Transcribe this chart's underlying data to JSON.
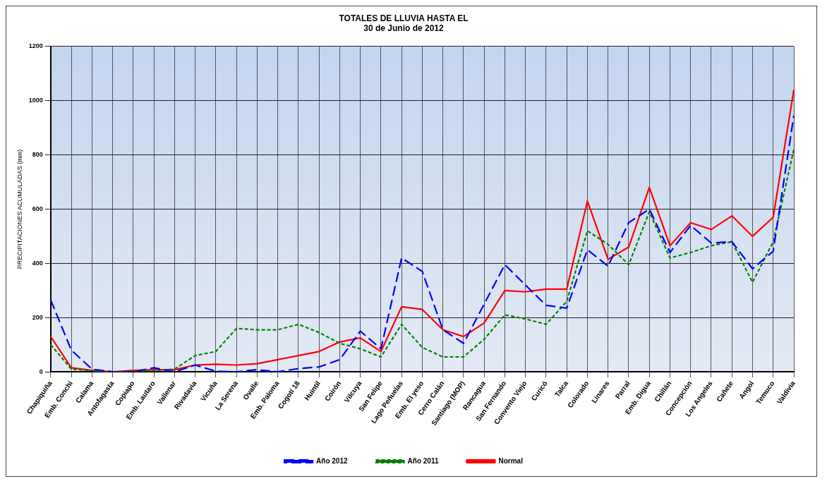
{
  "chart_data": {
    "type": "line",
    "title": "TOTALES DE LLUVIA HASTA EL\n30 de Junio de 2012",
    "ylabel": "PRECIPITACIONES ACUMULADAS (mm)",
    "categories": [
      "Chapiquiña",
      "Emb. Conchi",
      "Calama",
      "Antofagasta",
      "Copiapo",
      "Emb. Lautaro",
      "Vallenar",
      "Rivadavia",
      "Vicuña",
      "La Serena",
      "Ovalle",
      "Emb. Paloma",
      "Cogotí 18",
      "Huintil",
      "Coirón",
      "Vilcuya",
      "San Felipe",
      "Lago Peñuelas",
      "Emb. El yeso",
      "Cerro Calán",
      "Santiago (MOP)",
      "Rancagua",
      "San Fernando",
      "Convento Viejo",
      "Curicó",
      "Talca",
      "Colorado",
      "Linares",
      "Parral",
      "Emb. Digua",
      "Chillán",
      "Concepción",
      "Los Angeles",
      "Cañete",
      "Angol",
      "Temuco",
      "Valdivia"
    ],
    "series": [
      {
        "name": "Año 2012",
        "color": "#0000ff",
        "line_style": "dashed",
        "values": [
          265,
          80,
          10,
          0,
          0,
          15,
          0,
          25,
          2,
          0,
          8,
          0,
          12,
          18,
          45,
          150,
          85,
          420,
          370,
          155,
          105,
          250,
          395,
          320,
          245,
          235,
          450,
          390,
          550,
          600,
          440,
          540,
          475,
          480,
          380,
          445,
          945
        ]
      },
      {
        "name": "Año 2011",
        "color": "#008000",
        "line_style": "dotted",
        "values": [
          100,
          10,
          5,
          0,
          2,
          5,
          10,
          60,
          75,
          160,
          155,
          155,
          175,
          145,
          105,
          85,
          55,
          175,
          90,
          55,
          55,
          120,
          210,
          195,
          175,
          260,
          520,
          470,
          395,
          590,
          420,
          440,
          465,
          480,
          330,
          480,
          820
        ]
      },
      {
        "name": "Normal",
        "color": "#ff0000",
        "line_style": "solid",
        "values": [
          130,
          15,
          5,
          0,
          5,
          8,
          8,
          25,
          28,
          25,
          30,
          45,
          60,
          75,
          110,
          125,
          75,
          240,
          230,
          155,
          130,
          180,
          300,
          295,
          305,
          305,
          630,
          415,
          460,
          680,
          465,
          550,
          525,
          575,
          500,
          570,
          1040
        ]
      }
    ],
    "ylim": [
      0,
      1200
    ],
    "yticks": [
      0,
      200,
      400,
      600,
      800,
      1000,
      1200
    ],
    "grid": true,
    "legend": "bottom",
    "marker": "none"
  }
}
